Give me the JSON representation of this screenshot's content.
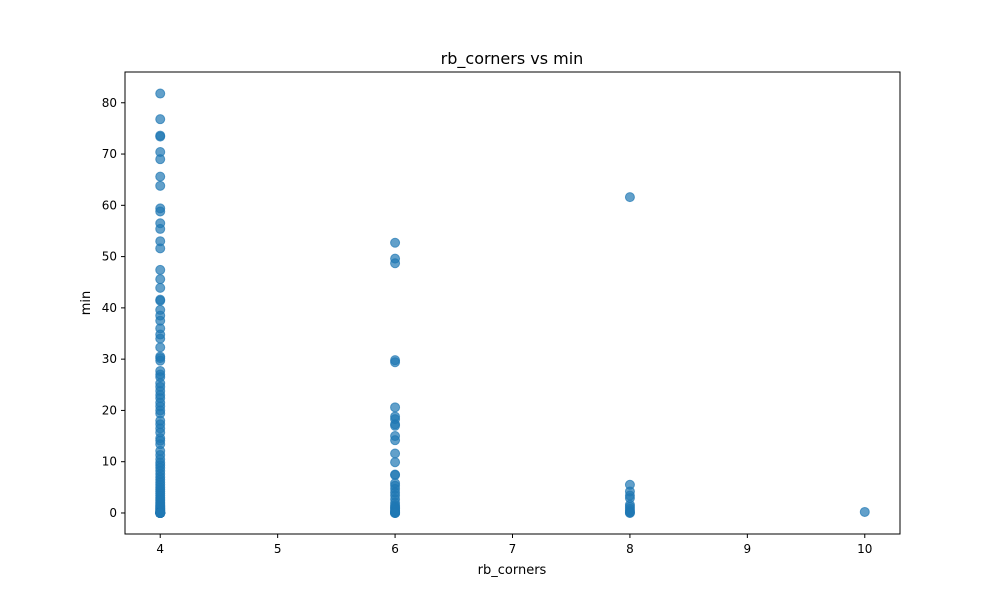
{
  "chart_data": {
    "type": "scatter",
    "title": "rb_corners vs min",
    "xlabel": "rb_corners",
    "ylabel": "min",
    "xlim": [
      3.7,
      10.3
    ],
    "ylim": [
      -4.1,
      86
    ],
    "xticks": [
      4,
      5,
      6,
      7,
      8,
      9,
      10
    ],
    "yticks": [
      0,
      10,
      20,
      30,
      40,
      50,
      60,
      70,
      80
    ],
    "grid": false,
    "marker_color": "#1f77b4",
    "marker_alpha": 0.7,
    "series": [
      {
        "x": [
          4,
          4,
          4,
          4,
          4,
          4,
          4,
          4,
          4,
          4,
          4,
          4,
          4,
          4,
          4,
          4,
          4,
          4,
          4,
          4,
          4,
          4,
          4,
          4,
          4,
          4,
          4,
          4,
          4,
          4,
          4,
          4,
          4,
          4,
          4,
          4,
          4,
          4,
          4,
          4,
          4,
          4,
          4,
          4,
          4,
          4,
          4,
          4,
          4,
          4,
          4,
          4,
          4,
          4,
          4,
          4,
          4,
          4,
          4,
          4,
          4,
          4,
          4,
          4,
          4,
          4,
          4,
          4,
          4,
          4,
          4,
          4,
          4,
          4,
          4,
          4,
          4,
          4,
          4,
          4,
          4,
          4,
          4,
          4,
          4,
          4,
          4,
          4,
          4,
          4,
          4,
          4,
          4,
          4,
          4,
          4,
          4,
          4,
          4,
          4,
          4,
          4,
          4,
          4,
          4,
          4,
          4,
          4,
          4,
          4,
          4,
          6,
          6,
          6,
          6,
          6,
          6,
          6,
          6,
          6,
          6,
          6,
          6,
          6,
          6,
          6,
          6,
          6,
          6,
          6,
          6,
          6,
          6,
          6,
          6,
          6,
          6,
          6,
          6,
          6,
          6,
          6,
          6,
          6,
          6,
          6,
          8,
          8,
          8,
          8,
          8,
          8,
          8,
          8,
          8,
          8,
          8,
          8,
          10
        ],
        "y": [
          81.8,
          76.8,
          73.6,
          73.4,
          70.4,
          69.0,
          65.6,
          63.8,
          59.4,
          58.8,
          56.5,
          55.4,
          53.0,
          51.6,
          47.4,
          45.6,
          43.9,
          41.6,
          41.4,
          39.6,
          38.5,
          37.5,
          36.0,
          34.8,
          34.0,
          32.3,
          30.5,
          30.2,
          29.7,
          27.7,
          27.0,
          26.5,
          25.3,
          24.6,
          23.8,
          23.0,
          22.4,
          21.5,
          20.8,
          20.0,
          19.4,
          18.0,
          17.3,
          16.5,
          15.7,
          14.6,
          14.1,
          13.4,
          12.1,
          11.3,
          10.5,
          9.8,
          9.3,
          8.8,
          8.2,
          7.6,
          7.0,
          6.5,
          6.0,
          5.5,
          5.0,
          4.6,
          4.2,
          3.8,
          3.4,
          3.0,
          2.7,
          2.4,
          2.1,
          1.8,
          1.5,
          1.3,
          1.1,
          0.9,
          0.7,
          0.5,
          0.4,
          0.3,
          0.2,
          0.1,
          0.05,
          0.0,
          0.0,
          0.0,
          0.0,
          0.0,
          0.0,
          0.0,
          0.0,
          0.0,
          0.0,
          0.0,
          0.0,
          0.0,
          0.0,
          0.0,
          0.0,
          0.0,
          0.0,
          0.0,
          0.0,
          0.0,
          0.0,
          0.0,
          0.0,
          0.0,
          0.0,
          0.0,
          0.0,
          0.0,
          0.0,
          52.7,
          49.6,
          48.7,
          29.8,
          29.4,
          20.6,
          18.8,
          18.3,
          17.3,
          17.0,
          15.0,
          14.2,
          11.6,
          9.9,
          7.5,
          7.4,
          5.8,
          5.3,
          4.7,
          4.0,
          3.4,
          2.7,
          2.0,
          1.5,
          1.2,
          1.0,
          0.8,
          0.5,
          0.3,
          0.2,
          0.1,
          0.0,
          0.0,
          0.0,
          0.0,
          61.6,
          5.5,
          4.2,
          3.4,
          2.9,
          1.6,
          1.2,
          0.8,
          0.4,
          0.2,
          0.05,
          0.0,
          0.2
        ]
      }
    ]
  }
}
